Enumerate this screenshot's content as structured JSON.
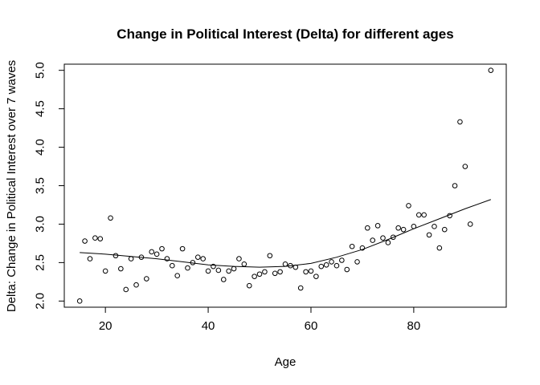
{
  "chart_data": {
    "type": "scatter",
    "title": "Change in Political Interest (Delta) for different ages",
    "xlabel": "Age",
    "ylabel": "Delta: Change in Political Interest over 7 waves",
    "xlim": [
      12,
      98
    ],
    "ylim": [
      1.92,
      5.08
    ],
    "xticks": [
      20,
      40,
      60,
      80
    ],
    "yticks": [
      2.0,
      2.5,
      3.0,
      3.5,
      4.0,
      4.5,
      5.0
    ],
    "ytick_labels": [
      "2.0",
      "2.5",
      "3.0",
      "3.5",
      "4.0",
      "4.5",
      "5.0"
    ],
    "grid": false,
    "legend": "none",
    "marker": "open-circle",
    "series": [
      {
        "kind": "points",
        "x": [
          15,
          16,
          17,
          18,
          19,
          20,
          21,
          22,
          23,
          24,
          25,
          26,
          27,
          28,
          29,
          30,
          31,
          32,
          33,
          34,
          35,
          36,
          37,
          38,
          39,
          40,
          41,
          42,
          43,
          44,
          45,
          46,
          47,
          48,
          49,
          50,
          51,
          52,
          53,
          54,
          55,
          56,
          57,
          58,
          59,
          60,
          61,
          62,
          63,
          64,
          65,
          66,
          67,
          68,
          69,
          70,
          71,
          72,
          73,
          74,
          75,
          76,
          77,
          78,
          79,
          80,
          81,
          82,
          83,
          84,
          85,
          86,
          87,
          88,
          89,
          90,
          91,
          95
        ],
        "y": [
          2.0,
          2.78,
          2.55,
          2.82,
          2.81,
          2.39,
          3.08,
          2.59,
          2.42,
          2.15,
          2.55,
          2.21,
          2.57,
          2.29,
          2.64,
          2.61,
          2.68,
          2.55,
          2.46,
          2.33,
          2.68,
          2.43,
          2.5,
          2.57,
          2.55,
          2.39,
          2.45,
          2.4,
          2.28,
          2.39,
          2.42,
          2.55,
          2.48,
          2.2,
          2.32,
          2.35,
          2.38,
          2.59,
          2.36,
          2.38,
          2.48,
          2.46,
          2.44,
          2.17,
          2.38,
          2.39,
          2.32,
          2.45,
          2.47,
          2.51,
          2.46,
          2.53,
          2.41,
          2.71,
          2.51,
          2.69,
          2.95,
          2.79,
          2.98,
          2.82,
          2.76,
          2.83,
          2.95,
          2.93,
          3.24,
          2.97,
          3.12,
          3.12,
          2.86,
          2.97,
          2.69,
          2.93,
          3.11,
          3.5,
          4.33,
          3.75,
          3.0,
          5.0
        ]
      },
      {
        "kind": "smooth-line",
        "x": [
          15,
          20,
          25,
          30,
          35,
          40,
          45,
          50,
          55,
          60,
          65,
          70,
          75,
          80,
          85,
          90,
          95
        ],
        "y": [
          2.63,
          2.61,
          2.58,
          2.55,
          2.51,
          2.47,
          2.45,
          2.44,
          2.45,
          2.49,
          2.57,
          2.67,
          2.8,
          2.94,
          3.07,
          3.2,
          3.32
        ]
      }
    ]
  }
}
